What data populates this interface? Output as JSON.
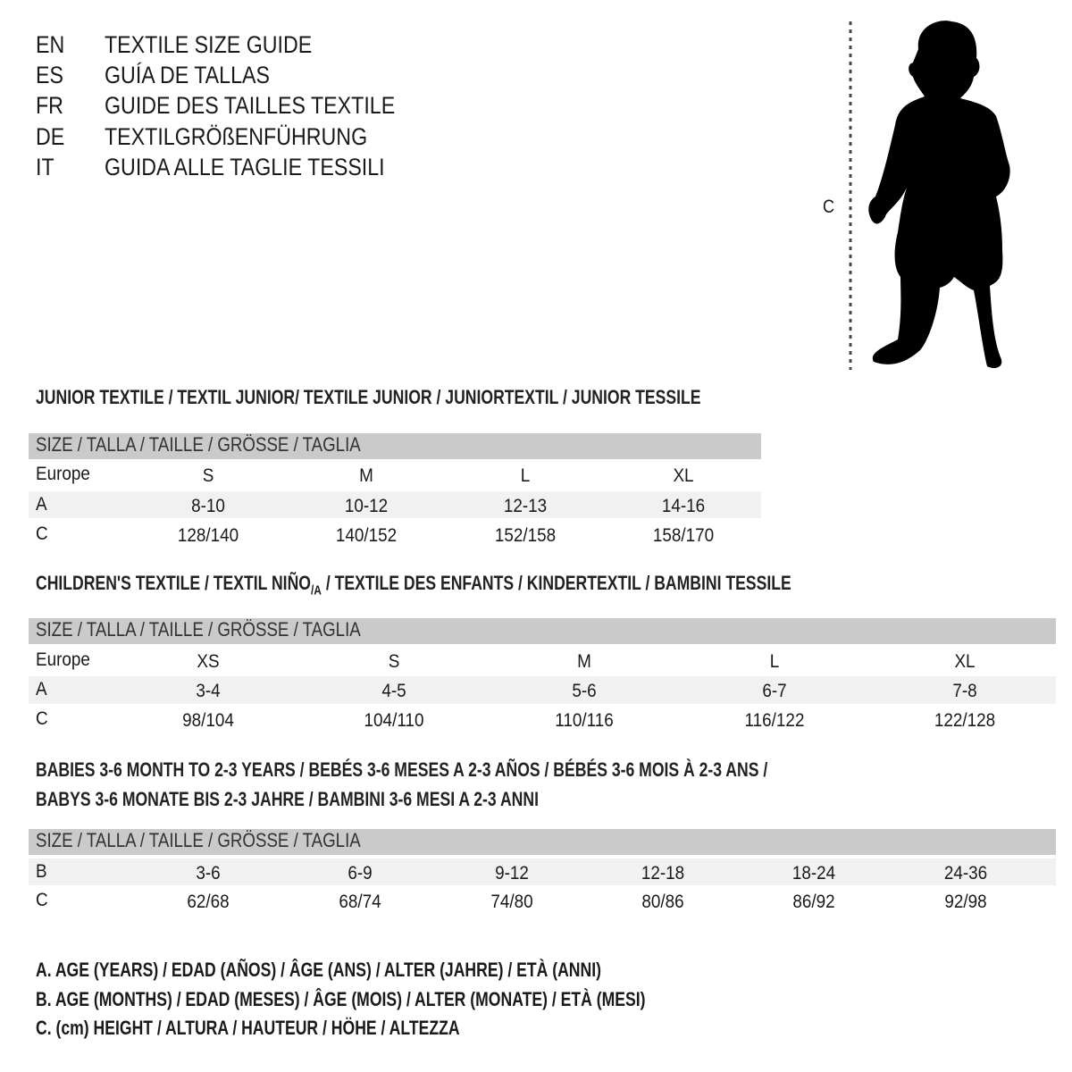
{
  "header": [
    {
      "code": "EN",
      "text": "TEXTILE SIZE GUIDE"
    },
    {
      "code": "ES",
      "text": "GUÍA DE TALLAS"
    },
    {
      "code": "FR",
      "text": "GUIDE DES TAILLES TEXTILE"
    },
    {
      "code": "DE",
      "text": "TEXTILGRÖßENFÜHRUNG"
    },
    {
      "code": "IT",
      "text": "GUIDA ALLE TAGLIE TESSILI"
    }
  ],
  "figure": {
    "label": "C",
    "icon": "child-silhouette"
  },
  "size_header": "SIZE / TALLA / TAILLE / GRÖSSE / TAGLIA",
  "junior": {
    "title": "JUNIOR TEXTILE / TEXTIL JUNIOR/ TEXTILE JUNIOR / JUNIORTEXTIL / JUNIOR TESSILE",
    "rows": [
      {
        "label": "Europe",
        "values": [
          "S",
          "M",
          "L",
          "XL"
        ]
      },
      {
        "label": "A",
        "values": [
          "8-10",
          "10-12",
          "12-13",
          "14-16"
        ]
      },
      {
        "label": "C",
        "values": [
          "128/140",
          "140/152",
          "152/158",
          "158/170"
        ]
      }
    ]
  },
  "children": {
    "title_a": "CHILDREN'S TEXTILE / TEXTIL NIÑO",
    "title_sub": "/A",
    "title_b": " / TEXTILE DES ENFANTS / KINDERTEXTIL / BAMBINI TESSILE",
    "rows": [
      {
        "label": "Europe",
        "values": [
          "XS",
          "S",
          "M",
          "L",
          "XL"
        ]
      },
      {
        "label": "A",
        "values": [
          "3-4",
          "4-5",
          "5-6",
          "6-7",
          "7-8"
        ]
      },
      {
        "label": "C",
        "values": [
          "98/104",
          "104/110",
          "110/116",
          "116/122",
          "122/128"
        ]
      }
    ]
  },
  "babies": {
    "title_1": "BABIES 3-6 MONTH TO 2-3 YEARS / BEBÉS 3-6 MESES A 2-3 AÑOS / BÉBÉS 3-6 MOIS À 2-3 ANS /",
    "title_2": "BABYS 3-6 MONATE BIS 2-3 JAHRE / BAMBINI 3-6 MESI A 2-3 ANNI",
    "rows": [
      {
        "label": "B",
        "values": [
          "3-6",
          "6-9",
          "9-12",
          "12-18",
          "18-24",
          "24-36"
        ]
      },
      {
        "label": "C",
        "values": [
          "62/68",
          "68/74",
          "74/80",
          "80/86",
          "86/92",
          "92/98"
        ]
      }
    ]
  },
  "legend": [
    "A. AGE (YEARS) / EDAD (AÑOS) / ÂGE (ANS) / ALTER (JAHRE) / ETÀ (ANNI)",
    "B. AGE (MONTHS) / EDAD (MESES) / ÂGE (MOIS) / ALTER (MONATE) / ETÀ (MESI)",
    "C. (cm) HEIGHT / ALTURA / HAUTEUR / HÖHE / ALTEZZA"
  ],
  "colors": {
    "band": "#cacaca",
    "alt_row": "#f1f1f1",
    "text": "#1a1a1a"
  }
}
